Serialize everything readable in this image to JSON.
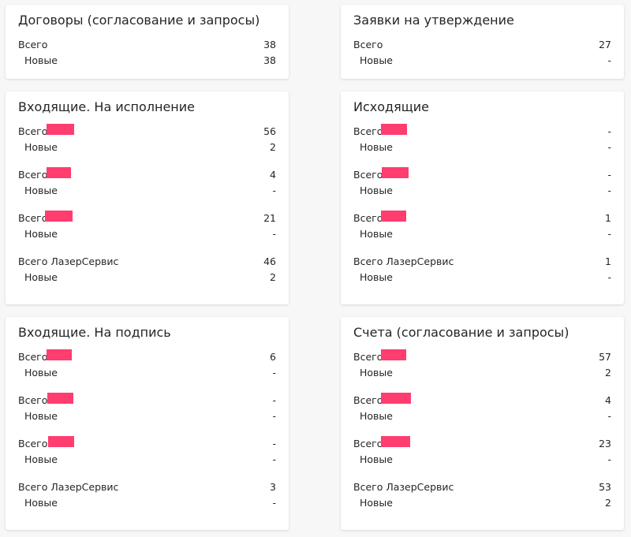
{
  "colors": {
    "redaction": "#ff3d6e",
    "card_bg": "#ffffff",
    "page_bg": "#f7f7f7"
  },
  "cards": {
    "contracts": {
      "title": "Договоры (согласование и запросы)",
      "rows": [
        {
          "label": "Всего",
          "value": "38"
        },
        {
          "label": "Новые",
          "value": "38"
        }
      ]
    },
    "approval": {
      "title": "Заявки на утверждение",
      "rows": [
        {
          "label": "Всего",
          "value": "27"
        },
        {
          "label": "Новые",
          "value": "-"
        }
      ]
    },
    "incoming_exec": {
      "title": "Входящие. На исполнение",
      "rows": [
        {
          "label": "Всего",
          "value": "56"
        },
        {
          "label": "Новые",
          "value": "2"
        },
        {
          "label": "Всего",
          "value": "4"
        },
        {
          "label": "Новые",
          "value": "-"
        },
        {
          "label": "Всего",
          "value": "21"
        },
        {
          "label": "Новые",
          "value": "-"
        },
        {
          "label": "Всего ЛазерСервис",
          "value": "46"
        },
        {
          "label": "Новые",
          "value": "2"
        }
      ]
    },
    "outgoing": {
      "title": "Исходящие",
      "rows": [
        {
          "label": "Всего",
          "value": "-"
        },
        {
          "label": "Новые",
          "value": "-"
        },
        {
          "label": "Всего",
          "value": "-"
        },
        {
          "label": "Новые",
          "value": "-"
        },
        {
          "label": "Всего",
          "value": "1"
        },
        {
          "label": "Новые",
          "value": "-"
        },
        {
          "label": "Всего ЛазерСервис",
          "value": "1"
        },
        {
          "label": "Новые",
          "value": "-"
        }
      ]
    },
    "incoming_sign": {
      "title": "Входящие. На подпись",
      "rows": [
        {
          "label": "Всего",
          "value": "6"
        },
        {
          "label": "Новые",
          "value": "-"
        },
        {
          "label": "Всего",
          "value": "-"
        },
        {
          "label": "Новые",
          "value": "-"
        },
        {
          "label": "Всего",
          "value": "-"
        },
        {
          "label": "Новые",
          "value": "-"
        },
        {
          "label": "Всего ЛазерСервис",
          "value": "3"
        },
        {
          "label": "Новые",
          "value": "-"
        }
      ]
    },
    "invoices": {
      "title": "Счета (согласование и запросы)",
      "rows": [
        {
          "label": "Всего",
          "value": "57"
        },
        {
          "label": "Новые",
          "value": "2"
        },
        {
          "label": "Всего",
          "value": "4"
        },
        {
          "label": "Новые",
          "value": "-"
        },
        {
          "label": "Всего",
          "value": "23"
        },
        {
          "label": "Новые",
          "value": "-"
        },
        {
          "label": "Всего ЛазерСервис",
          "value": "53"
        },
        {
          "label": "Новые",
          "value": "2"
        }
      ]
    }
  }
}
